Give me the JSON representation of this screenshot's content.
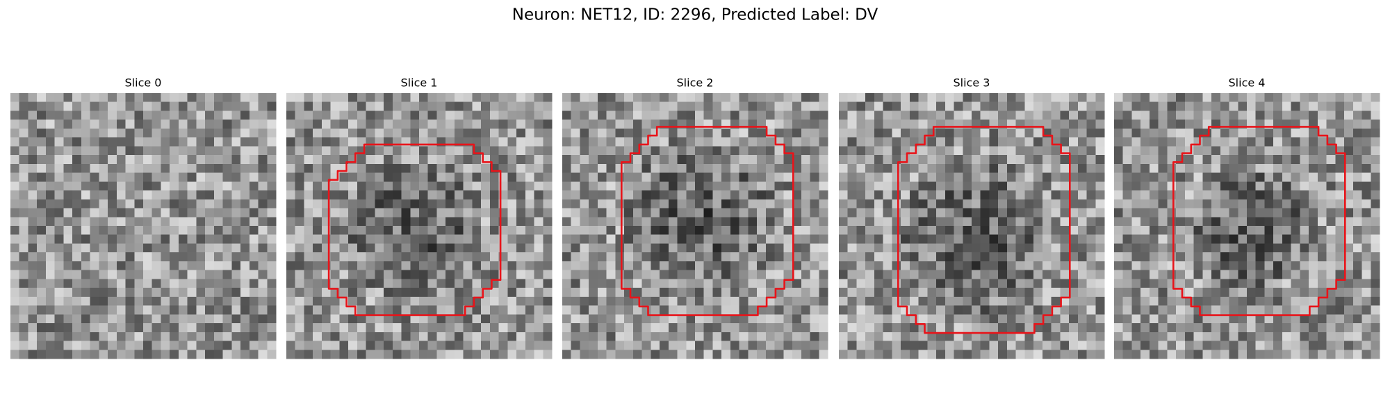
{
  "title": "Neuron: NET12, ID: 2296, Predicted Label: DV",
  "panels": [
    {
      "title": "Slice 0"
    },
    {
      "title": "Slice 1"
    },
    {
      "title": "Slice 2"
    },
    {
      "title": "Slice 3"
    },
    {
      "title": "Slice 4"
    }
  ]
}
